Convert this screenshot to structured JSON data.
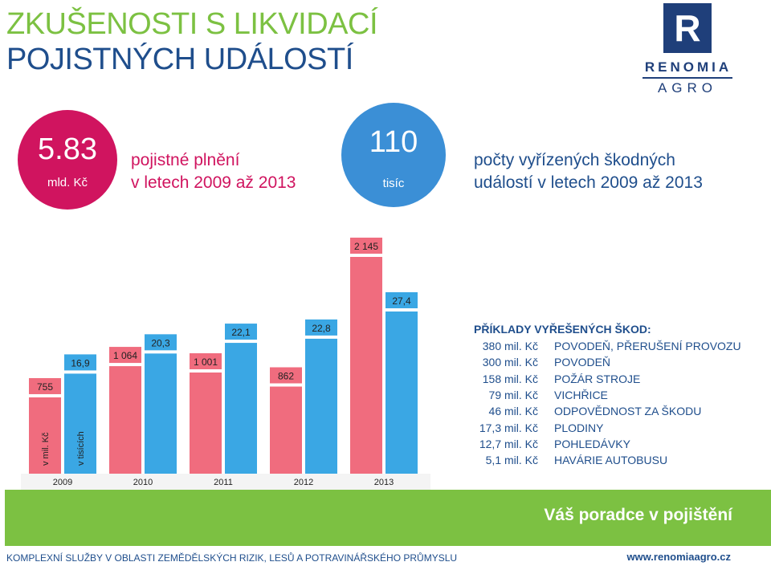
{
  "header": {
    "title_line1": "ZKUŠENOSTI S LIKVIDACÍ",
    "title_line2": "POJISTNÝCH UDÁLOSTÍ"
  },
  "logo": {
    "letter": "R",
    "name": "RENOMIA",
    "sub": "AGRO"
  },
  "stats": {
    "payout": {
      "value": "5.83",
      "unit": "mld. Kč",
      "desc_line1": "pojistné plnění",
      "desc_line2": "v letech 2009 až 2013"
    },
    "claims": {
      "value": "110",
      "unit": "tisíc",
      "desc_line1": "počty vyřízených škodných",
      "desc_line2": "událostí v letech 2009 až 2013"
    }
  },
  "colors": {
    "pink": "#f06c7e",
    "blue": "#3aa7e4",
    "green": "#7cc142",
    "navy": "#1f4e8c",
    "magenta": "#d0145f"
  },
  "chart_data": {
    "type": "bar",
    "categories": [
      "2009",
      "2010",
      "2011",
      "2012",
      "2013"
    ],
    "series": [
      {
        "unit_label": "v mil. Kč",
        "values": [
          755,
          1064,
          1001,
          862,
          2145
        ],
        "labels": [
          "755",
          "1 064",
          "1 001",
          "862",
          "2 145"
        ]
      },
      {
        "unit_label": "v tisících",
        "values": [
          16.9,
          20.3,
          22.1,
          22.8,
          27.4
        ],
        "labels": [
          "16,9",
          "20,3",
          "22,1",
          "22,8",
          "27,4"
        ]
      }
    ]
  },
  "examples": {
    "heading": "PŘÍKLADY VYŘEŠENÝCH ŠKOD:",
    "rows": [
      {
        "amount": "380 mil. Kč",
        "desc": "POVODEŇ, PŘERUŠENÍ PROVOZU"
      },
      {
        "amount": "300 mil. Kč",
        "desc": "POVODEŇ"
      },
      {
        "amount": "158 mil. Kč",
        "desc": "POŽÁR STROJE"
      },
      {
        "amount": "79 mil. Kč",
        "desc": "VICHŘICE"
      },
      {
        "amount": "46 mil. Kč",
        "desc": "ODPOVĚDNOST ZA ŠKODU"
      },
      {
        "amount": "17,3 mil. Kč",
        "desc": "PLODINY"
      },
      {
        "amount": "12,7 mil. Kč",
        "desc": "POHLEDÁVKY"
      },
      {
        "amount": "5,1 mil. Kč",
        "desc": "HAVÁRIE AUTOBUSU"
      }
    ]
  },
  "footer": {
    "slogan": "Váš poradce v pojištění",
    "services": "KOMPLEXNÍ SLUŽBY V OBLASTI ZEMĚDĚLSKÝCH RIZIK, LESŮ A POTRAVINÁŘSKÉHO PRŮMYSLU",
    "url": "www.renomiaagro.cz"
  }
}
